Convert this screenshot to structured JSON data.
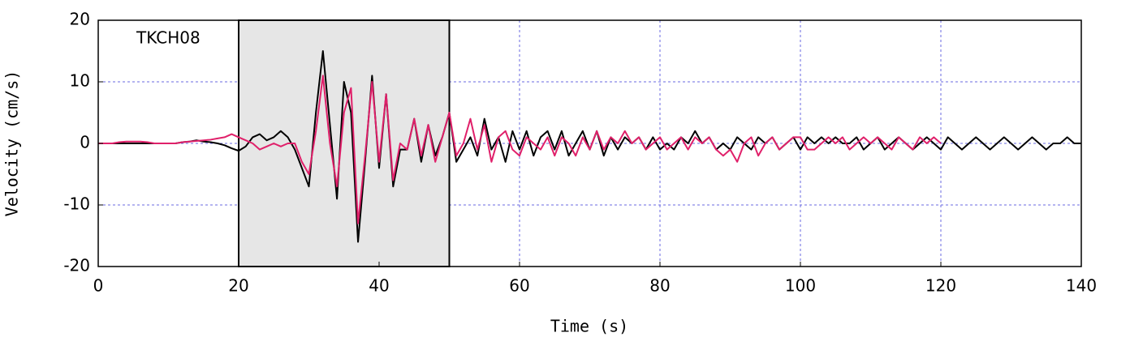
{
  "chart_data": {
    "type": "line",
    "annotation": "TKCH08",
    "xlabel": "Time (s)",
    "ylabel": "Velocity (cm/s)",
    "xlim": [
      0,
      140
    ],
    "xticks": [
      0,
      20,
      40,
      60,
      80,
      100,
      120,
      140
    ],
    "ylim": [
      -20,
      20
    ],
    "yticks": [
      -20,
      -10,
      0,
      10,
      20
    ],
    "grid": true,
    "shaded_region": [
      20,
      50
    ],
    "x": [
      0,
      1,
      2,
      3,
      4,
      5,
      6,
      7,
      8,
      9,
      10,
      11,
      12,
      13,
      14,
      15,
      16,
      17,
      18,
      19,
      20,
      21,
      22,
      23,
      24,
      25,
      26,
      27,
      28,
      29,
      30,
      31,
      32,
      33,
      34,
      35,
      36,
      37,
      38,
      39,
      40,
      41,
      42,
      43,
      44,
      45,
      46,
      47,
      48,
      49,
      50,
      51,
      52,
      53,
      54,
      55,
      56,
      57,
      58,
      59,
      60,
      61,
      62,
      63,
      64,
      65,
      66,
      67,
      68,
      69,
      70,
      71,
      72,
      73,
      74,
      75,
      76,
      77,
      78,
      79,
      80,
      81,
      82,
      83,
      84,
      85,
      86,
      87,
      88,
      89,
      90,
      91,
      92,
      93,
      94,
      95,
      96,
      97,
      98,
      99,
      100,
      101,
      102,
      103,
      104,
      105,
      106,
      107,
      108,
      109,
      110,
      111,
      112,
      113,
      114,
      115,
      116,
      117,
      118,
      119,
      120,
      121,
      122,
      123,
      124,
      125,
      126,
      127,
      128,
      129,
      130,
      131,
      132,
      133,
      134,
      135,
      136,
      137,
      138,
      139,
      140
    ],
    "series": [
      {
        "color": "#000000",
        "values": [
          0,
          0,
          0,
          0,
          0,
          0,
          0,
          0,
          0,
          0,
          0,
          0,
          0.2,
          0.3,
          0.5,
          0.3,
          0.2,
          0,
          -0.3,
          -0.8,
          -1.2,
          -0.5,
          1,
          1.5,
          0.5,
          1,
          2,
          1,
          -1,
          -4,
          -7,
          5,
          15,
          3,
          -9,
          10,
          5,
          -16,
          -3,
          11,
          -4,
          8,
          -7,
          -1,
          -1,
          4,
          -3,
          3,
          -2,
          1,
          5,
          -3,
          -1,
          1,
          -2,
          4,
          -1,
          1,
          -3,
          2,
          -1,
          2,
          -2,
          1,
          2,
          -1,
          2,
          -2,
          0,
          2,
          -1,
          2,
          -2,
          1,
          -1,
          1,
          0,
          1,
          -1,
          1,
          -1,
          0,
          -1,
          1,
          0,
          2,
          0,
          1,
          -1,
          0,
          -1,
          1,
          0,
          -1,
          1,
          0,
          1,
          -1,
          0,
          1,
          -1,
          1,
          0,
          1,
          0,
          1,
          0,
          0,
          1,
          -1,
          0,
          1,
          -1,
          0,
          1,
          0,
          -1,
          0,
          1,
          0,
          -1,
          1,
          0,
          -1,
          0,
          1,
          0,
          -1,
          0,
          1,
          0,
          -1,
          0,
          1,
          0,
          -1,
          0,
          0,
          1,
          0,
          0
        ]
      },
      {
        "color": "#e0206a",
        "values": [
          0,
          0,
          0,
          0.2,
          0.3,
          0.3,
          0.3,
          0.2,
          0,
          0,
          0,
          0,
          0.2,
          0.3,
          0.4,
          0.5,
          0.6,
          0.8,
          1,
          1.5,
          1,
          0.5,
          0,
          -1,
          -0.5,
          0,
          -0.5,
          0,
          0,
          -3,
          -5,
          2,
          11,
          0,
          -7,
          5,
          9,
          -13,
          -2,
          10,
          -3,
          8,
          -6,
          0,
          -1,
          4,
          -2,
          3,
          -3,
          1,
          5,
          -2,
          0,
          4,
          -1,
          3,
          -3,
          1,
          2,
          -1,
          -2,
          1,
          0,
          -1,
          1,
          -2,
          1,
          0,
          -2,
          1,
          -1,
          2,
          -1,
          1,
          0,
          2,
          0,
          1,
          -1,
          0,
          1,
          -1,
          0,
          1,
          -1,
          1,
          0,
          1,
          -1,
          -2,
          -1,
          -3,
          0,
          1,
          -2,
          0,
          1,
          -1,
          0,
          1,
          1,
          -1,
          -1,
          0,
          1,
          0,
          1,
          -1,
          0,
          1,
          0,
          1,
          0,
          -1,
          1,
          0,
          -1,
          1,
          0,
          1,
          0,
          null,
          null,
          null,
          null,
          null,
          null,
          null,
          null,
          null,
          null,
          null,
          null,
          null,
          null,
          null,
          null,
          null,
          null,
          null,
          null
        ]
      }
    ]
  }
}
